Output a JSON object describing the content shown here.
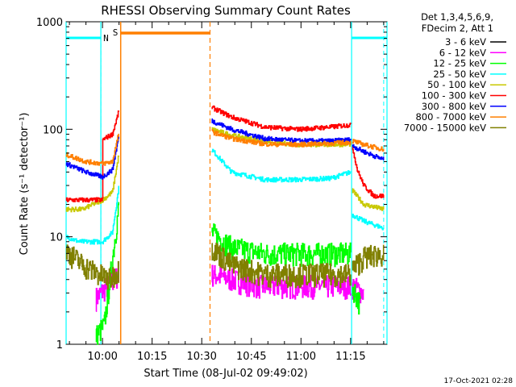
{
  "chart_data": {
    "type": "line",
    "title": "RHESSI Observing Summary Count Rates",
    "xlabel": "Start Time (08-Jul-02 09:49:02)",
    "ylabel": "Count Rate (s⁻¹ detector⁻¹)",
    "yscale": "log",
    "ylim": [
      1,
      1000
    ],
    "xlim_minutes": [
      0,
      97
    ],
    "x_unit": "minutes after 09:49:02",
    "x_ticks": [
      {
        "label": "10:00",
        "value": 11
      },
      {
        "label": "10:15",
        "value": 26
      },
      {
        "label": "10:30",
        "value": 41
      },
      {
        "label": "10:45",
        "value": 56
      },
      {
        "label": "11:00",
        "value": 71
      },
      {
        "label": "11:15",
        "value": 86
      }
    ],
    "y_ticks": [
      {
        "label": "1",
        "value": 1
      },
      {
        "label": "10",
        "value": 10
      },
      {
        "label": "100",
        "value": 100
      },
      {
        "label": "1000",
        "value": 1000
      }
    ],
    "legend_header": [
      "Det 1,3,4,5,6,9,",
      "FDecim 2, Att 1"
    ],
    "footer_date": "17-Oct-2021 02:28",
    "markers": {
      "saa_label": "S",
      "night_label": "N",
      "saa_color": "#ff7f00",
      "night_color": "#00ffff",
      "night_intervals": [
        [
          0,
          10.5
        ],
        [
          86.3,
          97
        ]
      ],
      "night_dashes": [
        10.5,
        96
      ],
      "saa_interval": [
        16.5,
        43.5
      ],
      "saa_dashes": [
        43.5
      ],
      "data_gap": [
        16,
        43.5
      ]
    },
    "series": [
      {
        "name": "3 - 6 keV",
        "color": "#000000",
        "segments": []
      },
      {
        "name": "6 - 12 keV",
        "color": "#ff00ff",
        "segments": [
          [
            [
              9,
              2.7
            ],
            [
              16,
              4.5
            ]
          ],
          [
            [
              44,
              4.5
            ],
            [
              58,
              3.5
            ],
            [
              86,
              3.5
            ]
          ],
          [
            [
              86.5,
              3.5
            ],
            [
              90,
              3.0
            ]
          ]
        ]
      },
      {
        "name": "12 - 25 keV",
        "color": "#00ff00",
        "segments": [
          [
            [
              9,
              1.2
            ],
            [
              11.5,
              1.5
            ],
            [
              16,
              20
            ]
          ],
          [
            [
              44,
              11
            ],
            [
              50,
              8
            ],
            [
              60,
              7
            ],
            [
              86,
              7
            ]
          ],
          [
            [
              86.5,
              3.5
            ],
            [
              89,
              2.3
            ]
          ]
        ]
      },
      {
        "name": "25 - 50 keV",
        "color": "#00ffff",
        "segments": [
          [
            [
              0,
              10
            ],
            [
              4,
              9
            ],
            [
              11,
              9
            ],
            [
              14,
              11
            ],
            [
              16,
              30
            ]
          ],
          [
            [
              44,
              65
            ],
            [
              50,
              40
            ],
            [
              60,
              34
            ],
            [
              70,
              34
            ],
            [
              80,
              35
            ],
            [
              86,
              40
            ]
          ],
          [
            [
              86.5,
              16
            ],
            [
              90,
              14
            ],
            [
              96,
              12
            ]
          ]
        ]
      },
      {
        "name": "50 - 100 keV",
        "color": "#c8c800",
        "segments": [
          [
            [
              0,
              18
            ],
            [
              5,
              18
            ],
            [
              8,
              20
            ],
            [
              11,
              22
            ],
            [
              14,
              26
            ],
            [
              16,
              60
            ]
          ],
          [
            [
              44,
              100
            ],
            [
              50,
              88
            ],
            [
              60,
              77
            ],
            [
              70,
              72
            ],
            [
              80,
              72
            ],
            [
              86,
              73
            ]
          ],
          [
            [
              86.5,
              27
            ],
            [
              90,
              20
            ],
            [
              96,
              18
            ]
          ]
        ]
      },
      {
        "name": "100 - 300 keV",
        "color": "#ff0000",
        "segments": [
          [
            [
              0,
              22
            ],
            [
              11,
              22
            ],
            [
              11,
              80
            ],
            [
              14,
              90
            ],
            [
              16,
              150
            ]
          ],
          [
            [
              44,
              160
            ],
            [
              50,
              130
            ],
            [
              60,
              105
            ],
            [
              70,
              100
            ],
            [
              80,
              105
            ],
            [
              86,
              110
            ]
          ],
          [
            [
              86.5,
              70
            ],
            [
              88,
              42
            ],
            [
              90,
              30
            ],
            [
              93,
              24
            ],
            [
              96,
              24
            ]
          ]
        ]
      },
      {
        "name": "300 - 800 keV",
        "color": "#0000ff",
        "segments": [
          [
            [
              0,
              48
            ],
            [
              6,
              40
            ],
            [
              11,
              36
            ],
            [
              14,
              42
            ],
            [
              16,
              90
            ]
          ],
          [
            [
              44,
              120
            ],
            [
              50,
              100
            ],
            [
              60,
              82
            ],
            [
              70,
              78
            ],
            [
              80,
              78
            ],
            [
              86,
              80
            ]
          ],
          [
            [
              86.5,
              70
            ],
            [
              90,
              62
            ],
            [
              96,
              52
            ]
          ]
        ]
      },
      {
        "name": "800 - 7000 keV",
        "color": "#ff7f00",
        "segments": [
          [
            [
              0,
              58
            ],
            [
              6,
              50
            ],
            [
              11,
              48
            ],
            [
              14,
              50
            ],
            [
              16,
              95
            ]
          ],
          [
            [
              44,
              95
            ],
            [
              50,
              82
            ],
            [
              60,
              73
            ],
            [
              70,
              72
            ],
            [
              80,
              74
            ],
            [
              86,
              76
            ]
          ],
          [
            [
              86.5,
              78
            ],
            [
              90,
              72
            ],
            [
              96,
              65
            ]
          ]
        ]
      },
      {
        "name": "7000 - 15000 keV",
        "color": "#808000",
        "segments": [
          [
            [
              0,
              7.5
            ],
            [
              5,
              5.5
            ],
            [
              10,
              4.5
            ],
            [
              13,
              4.0
            ],
            [
              16,
              5.0
            ]
          ],
          [
            [
              44,
              8
            ],
            [
              50,
              5.5
            ],
            [
              60,
              4.5
            ],
            [
              86,
              4.5
            ]
          ],
          [
            [
              86.5,
              5.0
            ],
            [
              90,
              6.5
            ],
            [
              96,
              7.0
            ]
          ]
        ]
      }
    ]
  }
}
